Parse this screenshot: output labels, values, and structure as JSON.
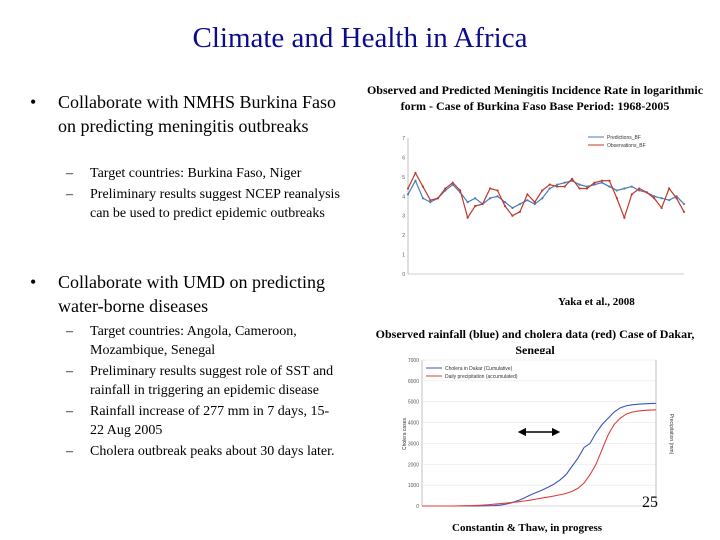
{
  "slide": {
    "title": "Climate and Health in Africa",
    "page_number": "25"
  },
  "left": {
    "bullet1": {
      "symbol": "•",
      "text": "Collaborate with NMHS Burkina Faso on predicting meningitis outbreaks",
      "items": [
        "Target countries: Burkina Faso, Niger",
        "Preliminary results suggest NCEP reanalysis can be used to predict epidemic outbreaks"
      ]
    },
    "bullet2": {
      "symbol": "•",
      "text": "Collaborate with UMD on predicting water-borne diseases",
      "items": [
        "Target countries: Angola, Cameroon, Mozambique, Senegal",
        "Preliminary results suggest role of SST and rainfall in triggering an epidemic disease",
        "Rainfall increase of 277 mm in 7 days, 15-22 Aug 2005",
        "Cholera outbreak peaks about 30 days later."
      ]
    },
    "dash": "–"
  },
  "right": {
    "caption1": "Observed and Predicted Meningitis Incidence Rate in logarithmic form - Case of Burkina Faso Base Period: 1968-2005",
    "cite1": "Yaka et al., 2008",
    "caption2": "Observed rainfall (blue) and cholera data (red) Case of Dakar, Senegal",
    "cite2": "Constantin & Thaw, in progress"
  },
  "chart_data": [
    {
      "type": "line",
      "title": "Observed and Predicted Meningitis Incidence Rate",
      "series": [
        {
          "name": "Predictions_BF",
          "color": "#4a7bb7",
          "values": [
            4.1,
            4.8,
            3.9,
            3.7,
            3.9,
            4.3,
            4.6,
            4.2,
            3.7,
            3.9,
            3.6,
            3.9,
            4.0,
            3.7,
            3.4,
            3.6,
            3.8,
            3.6,
            3.9,
            4.4,
            4.6,
            4.7,
            4.8,
            4.6,
            4.5,
            4.6,
            4.7,
            4.5,
            4.3,
            4.4,
            4.5,
            4.3,
            4.2,
            4.0,
            3.9,
            3.8,
            4.0,
            3.6
          ]
        },
        {
          "name": "Observations_BF",
          "color": "#c0392b",
          "values": [
            4.4,
            5.2,
            4.5,
            3.8,
            3.9,
            4.4,
            4.7,
            4.3,
            2.9,
            3.5,
            3.6,
            4.4,
            4.3,
            3.5,
            3.0,
            3.2,
            4.1,
            3.7,
            4.3,
            4.6,
            4.5,
            4.5,
            4.9,
            4.4,
            4.4,
            4.7,
            4.8,
            4.8,
            3.9,
            2.9,
            4.1,
            4.4,
            4.2,
            3.9,
            3.4,
            4.4,
            3.9,
            3.2
          ]
        }
      ],
      "ylim": [
        0,
        7
      ],
      "yticks": [
        "0",
        "1",
        "2",
        "3",
        "4",
        "5",
        "6",
        "7"
      ]
    },
    {
      "type": "line",
      "title": "Observed rainfall (blue) and cholera data (red)",
      "series": [
        {
          "name": "Cholera in Dakar (Cumulative)",
          "color": "#3a55c4",
          "values": [
            0,
            0,
            0,
            0,
            0,
            0,
            0,
            2,
            3,
            5,
            8,
            12,
            20,
            40,
            90,
            160,
            260,
            380,
            520,
            640,
            760,
            900,
            1050,
            1250,
            1500,
            1900,
            2300,
            2800,
            3000,
            3500,
            3900,
            4200,
            4500,
            4700,
            4800,
            4850,
            4880,
            4900,
            4910,
            4915
          ]
        },
        {
          "name": "Daily precipitation (accumulated)",
          "color": "#e03a3a",
          "values": [
            0,
            0,
            0,
            0,
            0,
            0,
            5,
            10,
            15,
            25,
            40,
            60,
            85,
            110,
            140,
            170,
            200,
            240,
            280,
            330,
            380,
            430,
            480,
            540,
            600,
            700,
            850,
            1100,
            1500,
            2000,
            2700,
            3400,
            3900,
            4200,
            4400,
            4500,
            4550,
            4580,
            4600,
            4610
          ]
        }
      ],
      "ylim": [
        0,
        7000
      ],
      "yticks": [
        "0",
        "1000",
        "2000",
        "3000",
        "4000",
        "5000",
        "6000",
        "7000"
      ],
      "ylabel_left": "Cholera cases",
      "ylabel_right": "Precipitation (mm)",
      "annotation": "double-headed arrow marking ~30 day lag"
    }
  ]
}
